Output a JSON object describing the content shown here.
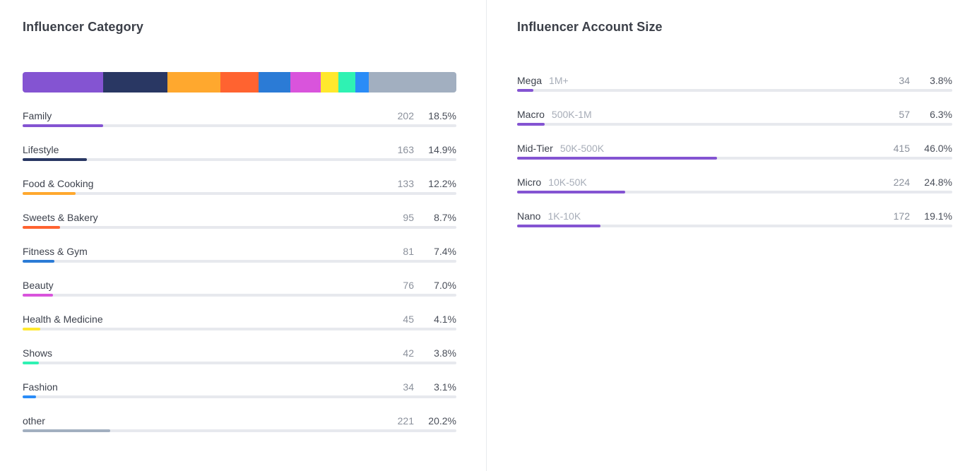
{
  "category_panel": {
    "title": "Influencer Category"
  },
  "size_panel": {
    "title": "Influencer Account Size"
  },
  "chart_data": [
    {
      "type": "bar",
      "title": "Influencer Category",
      "categories": [
        "Family",
        "Lifestyle",
        "Food & Cooking",
        "Sweets & Bakery",
        "Fitness & Gym",
        "Beauty",
        "Health & Medicine",
        "Shows",
        "Fashion",
        "other"
      ],
      "counts": [
        202,
        163,
        133,
        95,
        81,
        76,
        45,
        42,
        34,
        221
      ],
      "percent_labels": [
        "18.5%",
        "14.9%",
        "12.2%",
        "8.7%",
        "7.4%",
        "7.0%",
        "4.1%",
        "3.8%",
        "3.1%",
        "20.2%"
      ],
      "percent_values": [
        18.5,
        14.9,
        12.2,
        8.7,
        7.4,
        7.0,
        4.1,
        3.8,
        3.1,
        20.2
      ],
      "colors": [
        "#8454d2",
        "#293763",
        "#ffa82e",
        "#ff6330",
        "#2b7bd6",
        "#d954dc",
        "#ffe82d",
        "#2ff2b3",
        "#2a8cf7",
        "#a2afc0"
      ],
      "stacked_bar": true
    },
    {
      "type": "bar",
      "title": "Influencer Account Size",
      "categories": [
        "Mega",
        "Macro",
        "Mid-Tier",
        "Micro",
        "Nano"
      ],
      "ranges": [
        "1M+",
        "500K-1M",
        "50K-500K",
        "10K-50K",
        "1K-10K"
      ],
      "counts": [
        34,
        57,
        415,
        224,
        172
      ],
      "percent_labels": [
        "3.8%",
        "6.3%",
        "46.0%",
        "24.8%",
        "19.1%"
      ],
      "percent_values": [
        3.8,
        6.3,
        46.0,
        24.8,
        19.1
      ],
      "color": "#8454d2"
    }
  ]
}
